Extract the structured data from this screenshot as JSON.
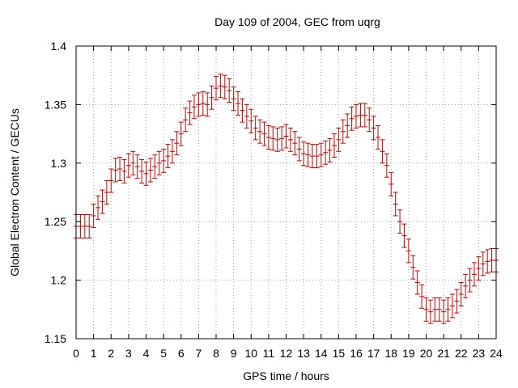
{
  "chart_data": {
    "type": "scatter",
    "title": "Day 109 of 2004, GEC from uqrg",
    "xlabel": "GPS time / hours",
    "ylabel": "Global Electron Content / GECUs",
    "xlim": [
      0,
      24
    ],
    "ylim": [
      1.15,
      1.4
    ],
    "x_ticks": [
      0,
      1,
      2,
      3,
      4,
      5,
      6,
      7,
      8,
      9,
      10,
      11,
      12,
      13,
      14,
      15,
      16,
      17,
      18,
      19,
      20,
      21,
      22,
      23,
      24
    ],
    "y_ticks": [
      1.15,
      1.2,
      1.25,
      1.3,
      1.35,
      1.4
    ],
    "y_tick_labels": [
      "1.15",
      "1.2",
      "1.25",
      "1.3",
      "1.35",
      "1.4"
    ],
    "grid": true,
    "marker_color": "#cc0000",
    "error_bar_halfwidth": 0.01,
    "series": [
      {
        "x": [
          0,
          0.25,
          0.5,
          0.75,
          1,
          1.25,
          1.5,
          1.75,
          2,
          2.25,
          2.5,
          2.75,
          3,
          3.25,
          3.5,
          3.75,
          4,
          4.25,
          4.5,
          4.75,
          5,
          5.25,
          5.5,
          5.75,
          6,
          6.25,
          6.5,
          6.75,
          7,
          7.25,
          7.5,
          7.75,
          8,
          8.25,
          8.5,
          8.75,
          9,
          9.25,
          9.5,
          9.75,
          10,
          10.25,
          10.5,
          10.75,
          11,
          11.25,
          11.5,
          11.75,
          12,
          12.25,
          12.5,
          12.75,
          13,
          13.25,
          13.5,
          13.75,
          14,
          14.25,
          14.5,
          14.75,
          15,
          15.25,
          15.5,
          15.75,
          16,
          16.25,
          16.5,
          16.75,
          17,
          17.25,
          17.5,
          17.75,
          18,
          18.25,
          18.5,
          18.75,
          19,
          19.25,
          19.5,
          19.75,
          20,
          20.25,
          20.5,
          20.75,
          21,
          21.25,
          21.5,
          21.75,
          22,
          22.25,
          22.5,
          22.75,
          23,
          23.25,
          23.5,
          23.75,
          24
        ],
        "y": [
          1.246,
          1.246,
          1.246,
          1.246,
          1.255,
          1.262,
          1.267,
          1.275,
          1.285,
          1.294,
          1.295,
          1.293,
          1.298,
          1.3,
          1.297,
          1.293,
          1.291,
          1.294,
          1.297,
          1.3,
          1.302,
          1.306,
          1.31,
          1.317,
          1.325,
          1.337,
          1.343,
          1.348,
          1.35,
          1.351,
          1.35,
          1.356,
          1.364,
          1.366,
          1.365,
          1.362,
          1.355,
          1.351,
          1.345,
          1.34,
          1.336,
          1.33,
          1.327,
          1.325,
          1.322,
          1.321,
          1.32,
          1.321,
          1.323,
          1.32,
          1.317,
          1.312,
          1.308,
          1.307,
          1.306,
          1.306,
          1.307,
          1.309,
          1.311,
          1.315,
          1.32,
          1.327,
          1.332,
          1.338,
          1.34,
          1.341,
          1.341,
          1.337,
          1.33,
          1.322,
          1.31,
          1.298,
          1.282,
          1.265,
          1.25,
          1.238,
          1.225,
          1.211,
          1.198,
          1.186,
          1.175,
          1.173,
          1.175,
          1.175,
          1.173,
          1.175,
          1.178,
          1.182,
          1.188,
          1.195,
          1.2,
          1.205,
          1.21,
          1.214,
          1.216,
          1.217,
          1.217
        ]
      }
    ]
  }
}
